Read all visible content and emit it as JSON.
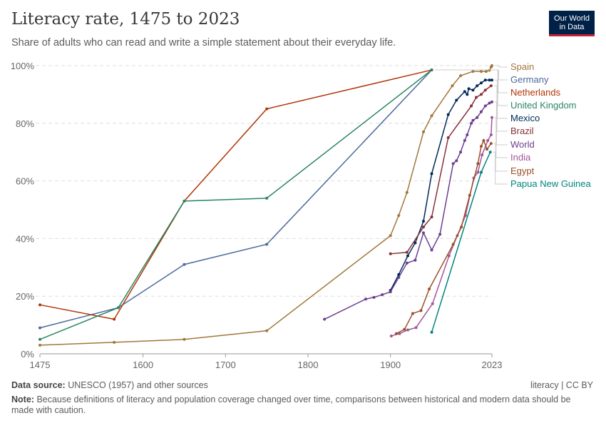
{
  "title": "Literacy rate, 1475 to 2023",
  "subtitle": "Share of adults who can read and write a simple statement about their everyday life.",
  "logo": {
    "line1": "Our World",
    "line2": "in Data"
  },
  "footer": {
    "source_label": "Data source:",
    "source": "UNESCO (1957) and other sources",
    "note_label": "Note:",
    "note": "Because definitions of literacy and population coverage changed over time, comparisons between historical and modern data should be made with caution.",
    "license": "literacy | CC BY"
  },
  "chart_data": {
    "type": "line",
    "title": "Literacy rate, 1475 to 2023",
    "xlim": [
      1475,
      2023
    ],
    "ylim": [
      0,
      100
    ],
    "xticks": [
      1475,
      1600,
      1700,
      1800,
      1900,
      2023
    ],
    "yticks": [
      0,
      20,
      40,
      60,
      80,
      100
    ],
    "ytick_labels": [
      "0%",
      "20%",
      "40%",
      "60%",
      "80%",
      "100%"
    ],
    "grid": "horizontal dashed",
    "legend": "right",
    "series": [
      {
        "name": "Spain",
        "color": "#a2773c",
        "points": [
          [
            1475,
            3
          ],
          [
            1565,
            4
          ],
          [
            1650,
            5
          ],
          [
            1750,
            8
          ],
          [
            1900,
            41
          ],
          [
            1910,
            48
          ],
          [
            1920,
            56
          ],
          [
            1940,
            77
          ],
          [
            1950,
            82.6
          ],
          [
            1975,
            93
          ],
          [
            1985,
            96.5
          ],
          [
            2000,
            98
          ],
          [
            2010,
            98
          ],
          [
            2016,
            98
          ],
          [
            2020,
            98.4
          ],
          [
            2022,
            99.5
          ],
          [
            2023,
            100
          ]
        ]
      },
      {
        "name": "Germany",
        "color": "#4c6a9c",
        "points": [
          [
            1475,
            9
          ],
          [
            1570,
            16
          ],
          [
            1650,
            31
          ],
          [
            1750,
            38
          ],
          [
            1950,
            98.5
          ]
        ]
      },
      {
        "name": "Netherlands",
        "color": "#b13507",
        "points": [
          [
            1475,
            17
          ],
          [
            1565,
            12
          ],
          [
            1650,
            53
          ],
          [
            1750,
            85
          ],
          [
            1950,
            98.5
          ]
        ]
      },
      {
        "name": "United Kingdom",
        "color": "#2c8465",
        "points": [
          [
            1475,
            5
          ],
          [
            1570,
            16
          ],
          [
            1650,
            53
          ],
          [
            1750,
            54
          ],
          [
            1950,
            98.5
          ]
        ]
      },
      {
        "name": "Mexico",
        "color": "#00295b",
        "points": [
          [
            1900,
            22
          ],
          [
            1910,
            27.5
          ],
          [
            1921,
            34
          ],
          [
            1930,
            38.5
          ],
          [
            1940,
            46
          ],
          [
            1950,
            62.5
          ],
          [
            1970,
            83
          ],
          [
            1980,
            88
          ],
          [
            1990,
            91
          ],
          [
            1993,
            90
          ],
          [
            1995,
            92
          ],
          [
            2000,
            91.5
          ],
          [
            2005,
            93
          ],
          [
            2010,
            94
          ],
          [
            2015,
            95
          ],
          [
            2020,
            95
          ],
          [
            2023,
            95
          ]
        ]
      },
      {
        "name": "Brazil",
        "color": "#883039",
        "points": [
          [
            1900,
            34.7
          ],
          [
            1920,
            35.2
          ],
          [
            1940,
            44
          ],
          [
            1950,
            47.5
          ],
          [
            1970,
            75
          ],
          [
            1998,
            86
          ],
          [
            2004,
            89
          ],
          [
            2010,
            90
          ],
          [
            2015,
            91.5
          ],
          [
            2022,
            93
          ]
        ]
      },
      {
        "name": "World",
        "color": "#6d3e91",
        "points": [
          [
            1820,
            12
          ],
          [
            1870,
            19
          ],
          [
            1880,
            19.6
          ],
          [
            1890,
            20.5
          ],
          [
            1900,
            21.5
          ],
          [
            1910,
            26.5
          ],
          [
            1920,
            31.5
          ],
          [
            1930,
            32.5
          ],
          [
            1940,
            42
          ],
          [
            1950,
            36
          ],
          [
            1960,
            41.5
          ],
          [
            1976,
            66
          ],
          [
            1980,
            67
          ],
          [
            1985,
            70
          ],
          [
            1990,
            74
          ],
          [
            1993,
            76
          ],
          [
            1998,
            80
          ],
          [
            2000,
            81
          ],
          [
            2005,
            82
          ],
          [
            2010,
            84
          ],
          [
            2015,
            86
          ],
          [
            2020,
            87
          ],
          [
            2023,
            87.4
          ]
        ]
      },
      {
        "name": "India",
        "color": "#a2559c",
        "points": [
          [
            1901,
            6.2
          ],
          [
            1911,
            7
          ],
          [
            1921,
            8.3
          ],
          [
            1931,
            9.1
          ],
          [
            1951,
            17.4
          ],
          [
            1971,
            34
          ],
          [
            1981,
            41
          ],
          [
            1991,
            48
          ],
          [
            2001,
            61
          ],
          [
            2006,
            63
          ],
          [
            2011,
            69
          ],
          [
            2018,
            74
          ],
          [
            2022,
            76
          ],
          [
            2023,
            82
          ]
        ]
      },
      {
        "name": "Egypt",
        "color": "#9a5129",
        "points": [
          [
            1907,
            7
          ],
          [
            1917,
            8.5
          ],
          [
            1927,
            14
          ],
          [
            1937,
            15
          ],
          [
            1947,
            22.5
          ],
          [
            1976,
            38
          ],
          [
            1986,
            44
          ],
          [
            1996,
            55
          ],
          [
            2006,
            66
          ],
          [
            2010,
            72
          ],
          [
            2013,
            74
          ],
          [
            2017,
            71
          ],
          [
            2022,
            73
          ]
        ]
      },
      {
        "name": "Papua New Guinea",
        "color": "#00847e",
        "points": [
          [
            1950,
            7.5
          ],
          [
            2010,
            63
          ],
          [
            2021,
            70
          ]
        ]
      }
    ]
  }
}
